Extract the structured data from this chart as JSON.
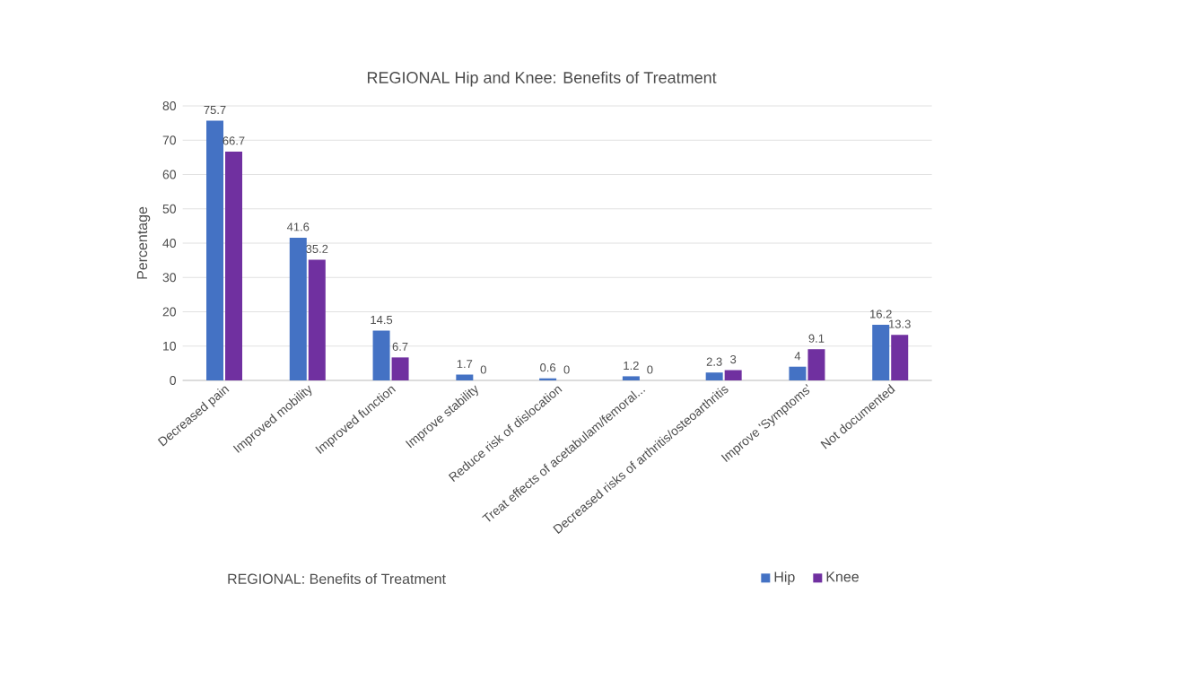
{
  "chart_data": {
    "type": "bar",
    "title": "REGIONAL Hip and Knee: Benefits of Treatment",
    "ylabel": "Percentage",
    "categories": [
      "Decreased pain",
      "Improved mobility",
      "Improved function",
      "Improve stability",
      "Reduce risk of dislocation",
      "Treat effects of acetabulam/femoral...",
      "Decreased risks of arthritis/osteoarthritis",
      "Improve 'Symptoms'",
      "Not documented"
    ],
    "series": [
      {
        "name": "Hip",
        "color": "#4472c4",
        "values": [
          75.7,
          41.6,
          14.5,
          1.7,
          0.6,
          1.2,
          2.3,
          4,
          16.2
        ]
      },
      {
        "name": "Knee",
        "color": "#7030a0",
        "values": [
          66.7,
          35.2,
          6.7,
          0,
          0,
          0,
          3,
          9.1,
          13.3
        ]
      }
    ],
    "ylim": [
      0,
      80
    ],
    "yticks": [
      0,
      10,
      20,
      30,
      40,
      50,
      60,
      70,
      80
    ],
    "grid": "y",
    "legend": "bottom",
    "data_labels": true,
    "annotations": [
      "REGIONAL: Benefits of Treatment"
    ]
  }
}
